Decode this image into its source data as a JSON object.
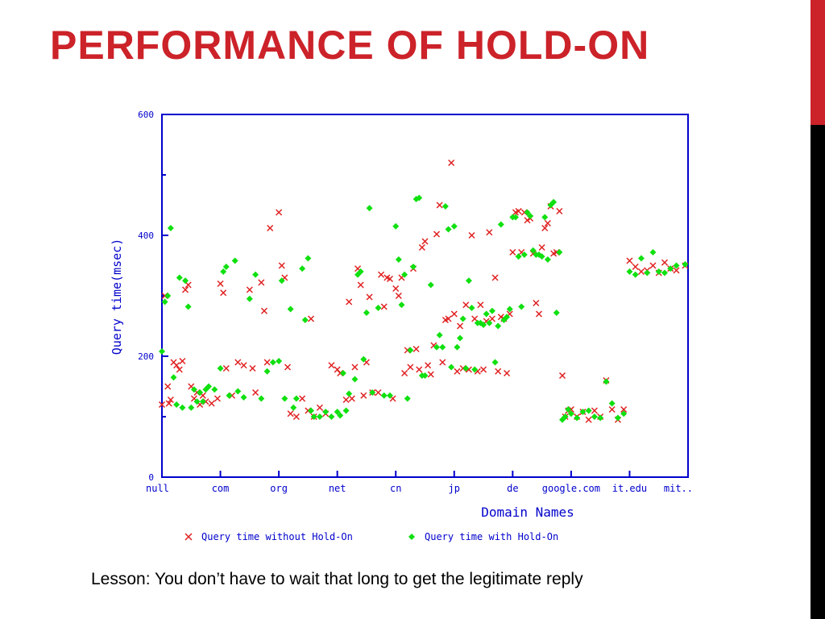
{
  "slide": {
    "title": "PERFORMANCE OF HOLD-ON",
    "caption": "Lesson: You don’t have to wait that long to get the legitimate reply"
  },
  "colors": {
    "accent": "#cc2229",
    "axis": "#0000cc",
    "series_without": "#e02020",
    "series_with": "#10e010"
  },
  "chart_data": {
    "type": "scatter",
    "title": "",
    "xlabel": "Domain Names",
    "ylabel": "Query time(msec)",
    "ylim": [
      0,
      600
    ],
    "yticks": [
      0,
      200,
      400,
      600
    ],
    "xlim": [
      0,
      9
    ],
    "categories": [
      "null",
      "com",
      "org",
      "net",
      "cn",
      "jp",
      "de",
      "google.com",
      "it.edu",
      "mit.."
    ],
    "legend_position": "bottom",
    "grid": false,
    "series": [
      {
        "name": "Query time without Hold-On",
        "marker": "x",
        "points": [
          [
            0.0,
            120
          ],
          [
            0.05,
            300
          ],
          [
            0.1,
            150
          ],
          [
            0.12,
            122
          ],
          [
            0.15,
            128
          ],
          [
            0.2,
            190
          ],
          [
            0.25,
            185
          ],
          [
            0.3,
            178
          ],
          [
            0.35,
            192
          ],
          [
            0.4,
            310
          ],
          [
            0.45,
            318
          ],
          [
            0.5,
            150
          ],
          [
            0.55,
            130
          ],
          [
            0.6,
            140
          ],
          [
            0.65,
            120
          ],
          [
            0.7,
            135
          ],
          [
            0.75,
            125
          ],
          [
            0.85,
            122
          ],
          [
            0.95,
            130
          ],
          [
            1.0,
            320
          ],
          [
            1.05,
            305
          ],
          [
            1.1,
            180
          ],
          [
            1.2,
            135
          ],
          [
            1.3,
            190
          ],
          [
            1.4,
            185
          ],
          [
            1.5,
            310
          ],
          [
            1.55,
            180
          ],
          [
            1.6,
            140
          ],
          [
            1.7,
            322
          ],
          [
            1.75,
            275
          ],
          [
            1.8,
            190
          ],
          [
            1.85,
            412
          ],
          [
            2.0,
            438
          ],
          [
            2.05,
            350
          ],
          [
            2.1,
            330
          ],
          [
            2.15,
            182
          ],
          [
            2.2,
            105
          ],
          [
            2.3,
            100
          ],
          [
            2.4,
            130
          ],
          [
            2.5,
            110
          ],
          [
            2.55,
            262
          ],
          [
            2.6,
            100
          ],
          [
            2.7,
            115
          ],
          [
            2.8,
            105
          ],
          [
            2.9,
            185
          ],
          [
            3.0,
            178
          ],
          [
            3.05,
            172
          ],
          [
            3.15,
            128
          ],
          [
            3.2,
            290
          ],
          [
            3.25,
            130
          ],
          [
            3.3,
            182
          ],
          [
            3.35,
            345
          ],
          [
            3.4,
            318
          ],
          [
            3.45,
            135
          ],
          [
            3.5,
            190
          ],
          [
            3.55,
            298
          ],
          [
            3.6,
            140
          ],
          [
            3.7,
            140
          ],
          [
            3.75,
            335
          ],
          [
            3.8,
            282
          ],
          [
            3.85,
            330
          ],
          [
            3.9,
            328
          ],
          [
            3.95,
            130
          ],
          [
            4.0,
            312
          ],
          [
            4.05,
            300
          ],
          [
            4.1,
            330
          ],
          [
            4.15,
            172
          ],
          [
            4.2,
            210
          ],
          [
            4.25,
            182
          ],
          [
            4.3,
            345
          ],
          [
            4.35,
            212
          ],
          [
            4.4,
            178
          ],
          [
            4.45,
            380
          ],
          [
            4.5,
            390
          ],
          [
            4.55,
            185
          ],
          [
            4.6,
            170
          ],
          [
            4.65,
            218
          ],
          [
            4.7,
            402
          ],
          [
            4.75,
            450
          ],
          [
            4.8,
            190
          ],
          [
            4.85,
            260
          ],
          [
            4.9,
            262
          ],
          [
            4.95,
            520
          ],
          [
            5.0,
            270
          ],
          [
            5.05,
            175
          ],
          [
            5.1,
            250
          ],
          [
            5.15,
            180
          ],
          [
            5.2,
            285
          ],
          [
            5.25,
            178
          ],
          [
            5.3,
            400
          ],
          [
            5.35,
            262
          ],
          [
            5.4,
            175
          ],
          [
            5.45,
            285
          ],
          [
            5.5,
            178
          ],
          [
            5.55,
            258
          ],
          [
            5.6,
            405
          ],
          [
            5.65,
            262
          ],
          [
            5.7,
            330
          ],
          [
            5.75,
            175
          ],
          [
            5.8,
            265
          ],
          [
            5.85,
            262
          ],
          [
            5.9,
            172
          ],
          [
            5.95,
            270
          ],
          [
            6.0,
            372
          ],
          [
            6.05,
            438
          ],
          [
            6.1,
            440
          ],
          [
            6.15,
            372
          ],
          [
            6.2,
            438
          ],
          [
            6.25,
            425
          ],
          [
            6.3,
            428
          ],
          [
            6.35,
            370
          ],
          [
            6.4,
            288
          ],
          [
            6.45,
            270
          ],
          [
            6.5,
            380
          ],
          [
            6.55,
            412
          ],
          [
            6.6,
            420
          ],
          [
            6.65,
            448
          ],
          [
            6.7,
            370
          ],
          [
            6.75,
            372
          ],
          [
            6.8,
            440
          ],
          [
            6.85,
            168
          ],
          [
            6.9,
            100
          ],
          [
            6.95,
            110
          ],
          [
            7.0,
            112
          ],
          [
            7.1,
            100
          ],
          [
            7.2,
            108
          ],
          [
            7.3,
            95
          ],
          [
            7.4,
            110
          ],
          [
            7.5,
            100
          ],
          [
            7.6,
            160
          ],
          [
            7.7,
            112
          ],
          [
            7.8,
            95
          ],
          [
            7.9,
            112
          ],
          [
            8.0,
            358
          ],
          [
            8.1,
            348
          ],
          [
            8.2,
            340
          ],
          [
            8.3,
            342
          ],
          [
            8.4,
            350
          ],
          [
            8.5,
            338
          ],
          [
            8.6,
            355
          ],
          [
            8.7,
            345
          ],
          [
            8.8,
            342
          ],
          [
            8.95,
            350
          ]
        ]
      },
      {
        "name": "Query time with Hold-On",
        "marker": "diamond",
        "points": [
          [
            0.0,
            208
          ],
          [
            0.05,
            290
          ],
          [
            0.1,
            300
          ],
          [
            0.15,
            412
          ],
          [
            0.2,
            165
          ],
          [
            0.25,
            120
          ],
          [
            0.3,
            330
          ],
          [
            0.35,
            115
          ],
          [
            0.4,
            325
          ],
          [
            0.45,
            282
          ],
          [
            0.5,
            115
          ],
          [
            0.55,
            145
          ],
          [
            0.6,
            125
          ],
          [
            0.65,
            140
          ],
          [
            0.7,
            125
          ],
          [
            0.75,
            145
          ],
          [
            0.8,
            150
          ],
          [
            0.9,
            145
          ],
          [
            1.0,
            180
          ],
          [
            1.05,
            340
          ],
          [
            1.1,
            348
          ],
          [
            1.15,
            135
          ],
          [
            1.25,
            358
          ],
          [
            1.3,
            142
          ],
          [
            1.4,
            132
          ],
          [
            1.5,
            295
          ],
          [
            1.6,
            335
          ],
          [
            1.7,
            130
          ],
          [
            1.8,
            175
          ],
          [
            1.9,
            190
          ],
          [
            2.0,
            192
          ],
          [
            2.05,
            325
          ],
          [
            2.1,
            130
          ],
          [
            2.2,
            278
          ],
          [
            2.25,
            115
          ],
          [
            2.3,
            130
          ],
          [
            2.4,
            345
          ],
          [
            2.45,
            260
          ],
          [
            2.5,
            362
          ],
          [
            2.55,
            110
          ],
          [
            2.6,
            100
          ],
          [
            2.7,
            100
          ],
          [
            2.8,
            108
          ],
          [
            2.9,
            100
          ],
          [
            3.0,
            108
          ],
          [
            3.05,
            102
          ],
          [
            3.1,
            172
          ],
          [
            3.15,
            110
          ],
          [
            3.2,
            138
          ],
          [
            3.3,
            162
          ],
          [
            3.35,
            335
          ],
          [
            3.4,
            340
          ],
          [
            3.45,
            195
          ],
          [
            3.5,
            272
          ],
          [
            3.55,
            445
          ],
          [
            3.6,
            140
          ],
          [
            3.7,
            280
          ],
          [
            3.8,
            135
          ],
          [
            3.9,
            135
          ],
          [
            4.0,
            415
          ],
          [
            4.05,
            360
          ],
          [
            4.1,
            285
          ],
          [
            4.15,
            335
          ],
          [
            4.2,
            130
          ],
          [
            4.25,
            210
          ],
          [
            4.3,
            348
          ],
          [
            4.35,
            460
          ],
          [
            4.4,
            462
          ],
          [
            4.45,
            168
          ],
          [
            4.5,
            168
          ],
          [
            4.6,
            318
          ],
          [
            4.7,
            215
          ],
          [
            4.75,
            235
          ],
          [
            4.8,
            215
          ],
          [
            4.85,
            448
          ],
          [
            4.9,
            410
          ],
          [
            4.95,
            182
          ],
          [
            5.0,
            415
          ],
          [
            5.05,
            215
          ],
          [
            5.1,
            230
          ],
          [
            5.15,
            262
          ],
          [
            5.2,
            180
          ],
          [
            5.25,
            325
          ],
          [
            5.3,
            280
          ],
          [
            5.35,
            178
          ],
          [
            5.4,
            255
          ],
          [
            5.45,
            255
          ],
          [
            5.5,
            252
          ],
          [
            5.55,
            270
          ],
          [
            5.6,
            255
          ],
          [
            5.65,
            275
          ],
          [
            5.7,
            190
          ],
          [
            5.75,
            250
          ],
          [
            5.8,
            418
          ],
          [
            5.85,
            260
          ],
          [
            5.9,
            265
          ],
          [
            5.95,
            278
          ],
          [
            6.0,
            430
          ],
          [
            6.05,
            430
          ],
          [
            6.1,
            365
          ],
          [
            6.15,
            282
          ],
          [
            6.2,
            368
          ],
          [
            6.25,
            438
          ],
          [
            6.3,
            432
          ],
          [
            6.35,
            375
          ],
          [
            6.4,
            368
          ],
          [
            6.45,
            368
          ],
          [
            6.5,
            365
          ],
          [
            6.55,
            430
          ],
          [
            6.6,
            360
          ],
          [
            6.65,
            450
          ],
          [
            6.7,
            455
          ],
          [
            6.75,
            272
          ],
          [
            6.8,
            372
          ],
          [
            6.85,
            95
          ],
          [
            6.9,
            100
          ],
          [
            6.95,
            112
          ],
          [
            7.0,
            105
          ],
          [
            7.1,
            98
          ],
          [
            7.2,
            108
          ],
          [
            7.3,
            110
          ],
          [
            7.4,
            100
          ],
          [
            7.5,
            98
          ],
          [
            7.6,
            158
          ],
          [
            7.7,
            122
          ],
          [
            7.8,
            98
          ],
          [
            7.9,
            105
          ],
          [
            8.0,
            340
          ],
          [
            8.1,
            335
          ],
          [
            8.2,
            362
          ],
          [
            8.3,
            338
          ],
          [
            8.4,
            372
          ],
          [
            8.5,
            340
          ],
          [
            8.6,
            338
          ],
          [
            8.7,
            345
          ],
          [
            8.8,
            350
          ],
          [
            8.95,
            352
          ]
        ]
      }
    ]
  }
}
